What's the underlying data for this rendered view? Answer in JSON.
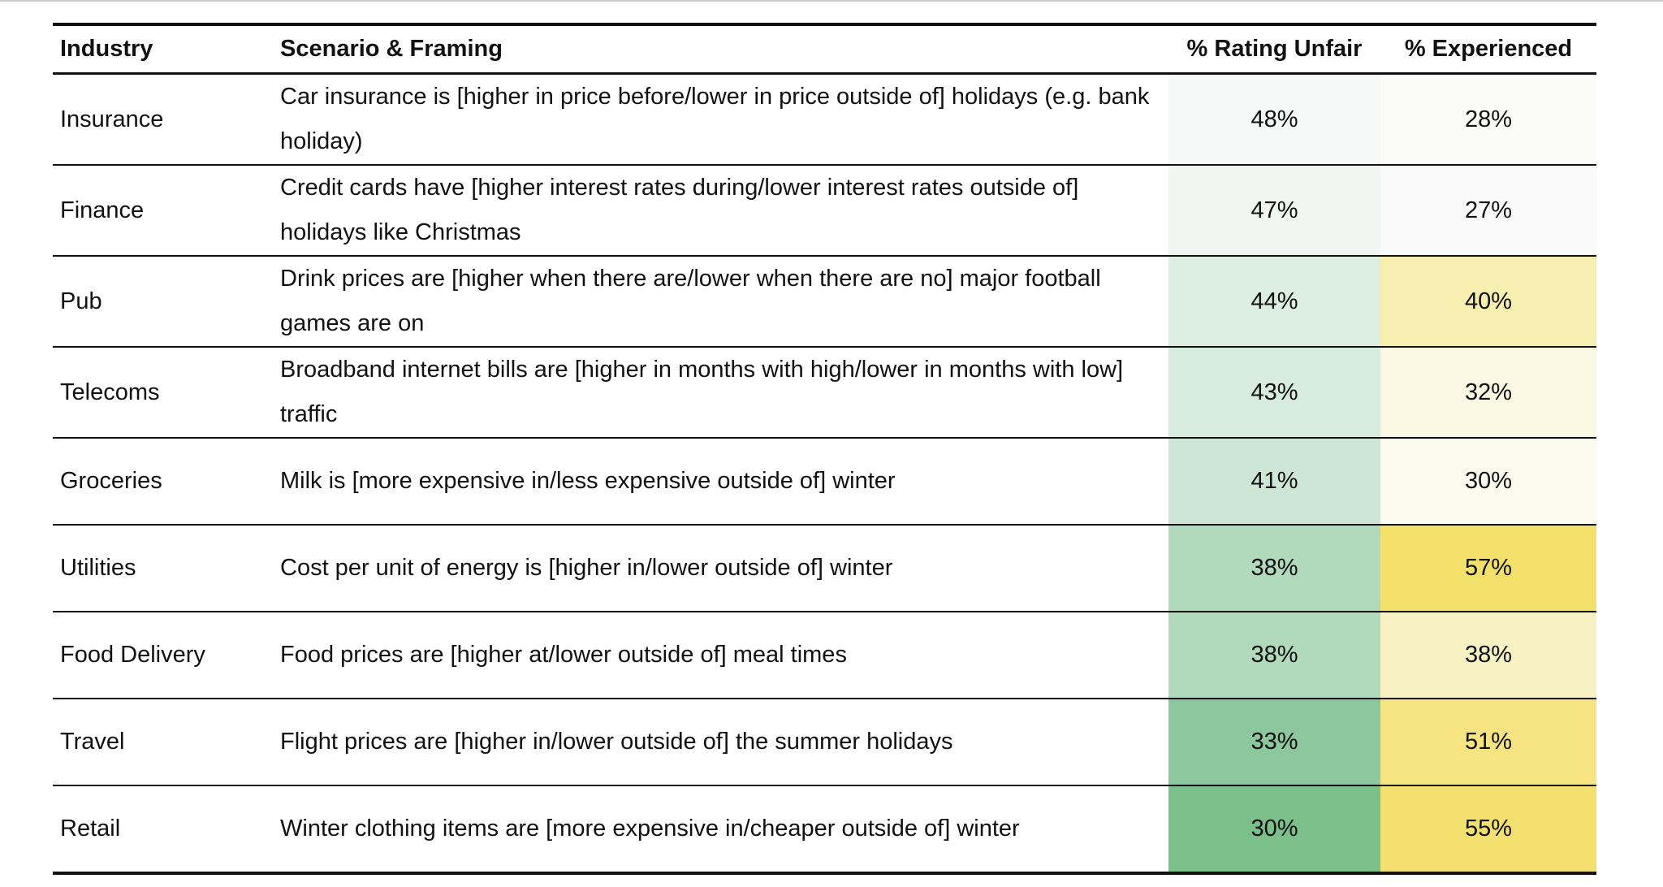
{
  "table": {
    "header": [
      "Industry",
      "Scenario & Framing",
      "% Rating Unfair",
      "% Experienced"
    ],
    "rows": [
      [
        "Insurance",
        "Car insurance is [higher in price before/lower in price outside of] holidays (e.g. bank holiday)",
        "48%",
        "28%"
      ],
      [
        "Finance",
        "Credit cards have [higher interest rates during/lower interest rates outside of] holidays like Christmas",
        "47%",
        "27%"
      ],
      [
        "Pub",
        "Drink prices are [higher when there are/lower when there are no] major football games are on",
        "44%",
        "40%"
      ],
      [
        "Telecoms",
        "Broadband internet bills are [higher in months with high/lower in months with low] traffic",
        "43%",
        "32%"
      ],
      [
        "Groceries",
        "Milk is [more expensive in/less expensive outside of] winter",
        "41%",
        "30%"
      ],
      [
        "Utilities",
        "Cost per unit of energy is [higher in/lower outside of] winter",
        "38%",
        "57%"
      ],
      [
        "Food Delivery",
        "Food prices are [higher at/lower outside of] meal times",
        "38%",
        "38%"
      ],
      [
        "Travel",
        "Flight prices are [higher in/lower outside of] the summer holidays",
        "33%",
        "51%"
      ],
      [
        "Retail",
        "Winter clothing items are [more expensive in/cheaper outside of] winter",
        "30%",
        "55%"
      ]
    ],
    "cell_colors": [
      [
        "#f6f9f7",
        "#fbfbfa"
      ],
      [
        "#f1f6f3",
        "#fafafb"
      ],
      [
        "#dcede2",
        "#f7efb0"
      ],
      [
        "#d8ebdf",
        "#fbf8e3"
      ],
      [
        "#cde6d5",
        "#fcfbf0"
      ],
      [
        "#b1d9bc",
        "#f3e06a"
      ],
      [
        "#b1d9bc",
        "#f8f1c4"
      ],
      [
        "#8cc79d",
        "#f5e481"
      ],
      [
        "#7bbf8a",
        "#f3e06e"
      ]
    ]
  }
}
